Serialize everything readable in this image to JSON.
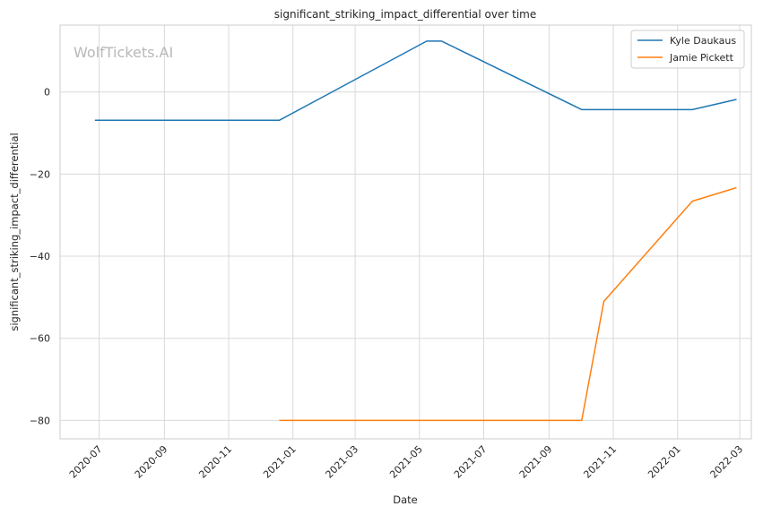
{
  "chart_data": {
    "type": "line",
    "title": "significant_striking_impact_differential over time",
    "xlabel": "Date",
    "ylabel": "significant_striking_impact_differential",
    "watermark": "WolfTickets.AI",
    "x_ticks": [
      "2020-07",
      "2020-09",
      "2020-11",
      "2021-01",
      "2021-03",
      "2021-05",
      "2021-07",
      "2021-09",
      "2021-11",
      "2022-01",
      "2022-03"
    ],
    "y_ticks": [
      0,
      -20,
      -40,
      -60,
      -80
    ],
    "xlim": [
      "2020-05-25",
      "2022-03-12"
    ],
    "ylim": [
      -84.5,
      16.3
    ],
    "grid": true,
    "legend_position": "top-right",
    "series": [
      {
        "name": "Kyle Daukaus",
        "color": "#1f77b4",
        "points": [
          {
            "x": "2020-06-27",
            "y": -6.9
          },
          {
            "x": "2020-12-19",
            "y": -6.9
          },
          {
            "x": "2021-05-08",
            "y": 12.4
          },
          {
            "x": "2021-05-22",
            "y": 12.4
          },
          {
            "x": "2021-10-02",
            "y": -4.3
          },
          {
            "x": "2022-01-15",
            "y": -4.3
          },
          {
            "x": "2022-02-26",
            "y": -1.8
          }
        ]
      },
      {
        "name": "Jamie Pickett",
        "color": "#ff7f0e",
        "points": [
          {
            "x": "2020-12-19",
            "y": -80
          },
          {
            "x": "2021-10-02",
            "y": -80
          },
          {
            "x": "2021-10-23",
            "y": -51
          },
          {
            "x": "2022-01-15",
            "y": -26.6
          },
          {
            "x": "2022-02-26",
            "y": -23.3
          }
        ]
      }
    ]
  }
}
